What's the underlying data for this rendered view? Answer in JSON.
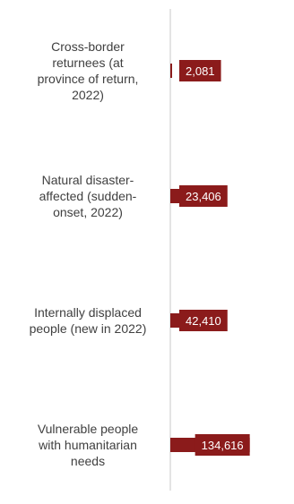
{
  "chart_data": {
    "type": "bar",
    "orientation": "horizontal",
    "categories": [
      [
        "Cross-border",
        "returnees (at",
        "province of return,",
        "2022)"
      ],
      [
        "Natural disaster-",
        "affected (sudden-",
        "onset, 2022)"
      ],
      [
        "Internally displaced",
        "people (new in 2022)"
      ],
      [
        "Vulnerable people",
        "with humanitarian",
        "needs"
      ]
    ],
    "values": [
      2081,
      23406,
      42410,
      134616
    ],
    "data_labels": [
      "2,081",
      "23,406",
      "42,410",
      "134,616"
    ],
    "title": "",
    "xlabel": "",
    "ylabel": "",
    "grid": false,
    "colors": {
      "bar": "#8b1b1b",
      "label_box": "#8b1b1b",
      "label_text": "#ffffff",
      "category_text": "#404040",
      "axis": "#c8c8c8"
    }
  }
}
